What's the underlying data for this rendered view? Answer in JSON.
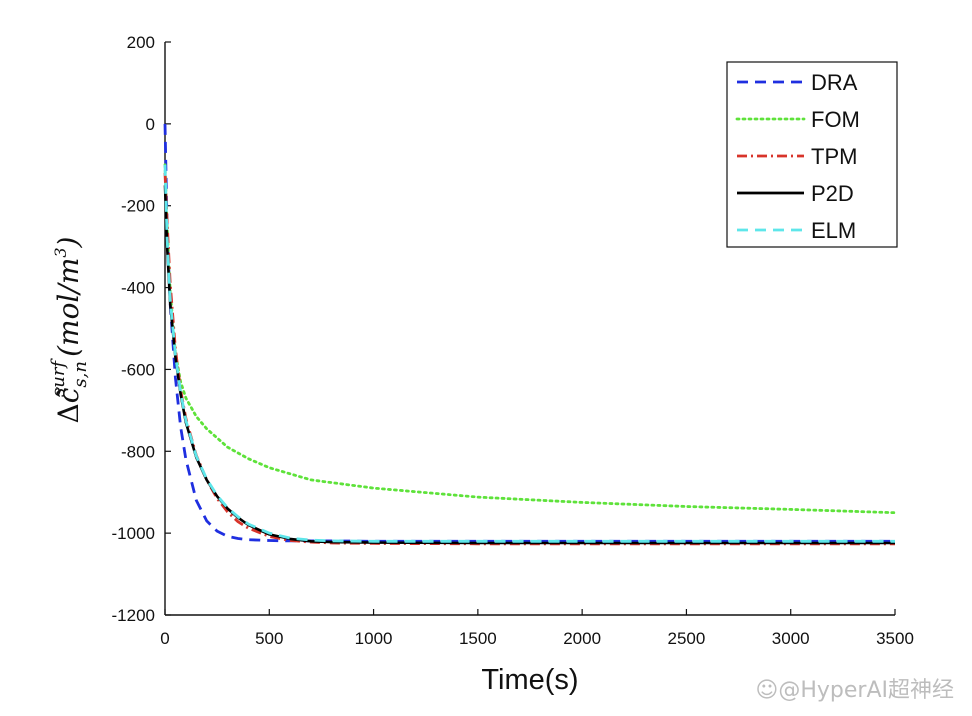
{
  "chart_data": {
    "type": "line",
    "title": "",
    "xlabel": "Time(s)",
    "ylabel": "Δc̃ s,n surf (mol/m³)",
    "xlim": [
      0,
      3500
    ],
    "ylim": [
      -1200,
      200
    ],
    "xticks": [
      0,
      500,
      1000,
      1500,
      2000,
      2500,
      3000,
      3500
    ],
    "yticks": [
      200,
      0,
      -200,
      -400,
      -600,
      -800,
      -1000,
      -1200
    ],
    "legend_position": "top-right",
    "series": [
      {
        "name": "DRA",
        "color": "#1f2fe0",
        "style": "dashed",
        "x": [
          0,
          10,
          25,
          50,
          75,
          100,
          150,
          200,
          250,
          300,
          350,
          400,
          500,
          600,
          800,
          1000,
          1500,
          2000,
          2500,
          3000,
          3500
        ],
        "y": [
          0,
          -250,
          -440,
          -620,
          -740,
          -820,
          -920,
          -970,
          -995,
          -1008,
          -1013,
          -1016,
          -1018,
          -1019,
          -1019,
          -1020,
          -1020,
          -1020,
          -1020,
          -1020,
          -1020
        ]
      },
      {
        "name": "FOM",
        "color": "#5ee23a",
        "style": "dotted",
        "x": [
          0,
          10,
          25,
          50,
          75,
          100,
          150,
          200,
          300,
          400,
          500,
          700,
          1000,
          1500,
          2000,
          2500,
          3000,
          3500
        ],
        "y": [
          -100,
          -250,
          -410,
          -560,
          -630,
          -670,
          -715,
          -745,
          -790,
          -818,
          -840,
          -870,
          -890,
          -912,
          -925,
          -935,
          -942,
          -950
        ]
      },
      {
        "name": "TPM",
        "color": "#d8342a",
        "style": "dash-dot",
        "x": [
          0,
          10,
          25,
          50,
          75,
          100,
          150,
          200,
          250,
          300,
          350,
          400,
          500,
          600,
          700,
          800,
          1000,
          1500,
          2000,
          2500,
          3000,
          3500
        ],
        "y": [
          -120,
          -240,
          -390,
          -550,
          -650,
          -720,
          -810,
          -870,
          -915,
          -948,
          -972,
          -988,
          -1008,
          -1018,
          -1022,
          -1024,
          -1025,
          -1026,
          -1026,
          -1026,
          -1026,
          -1026
        ]
      },
      {
        "name": "P2D",
        "color": "#000000",
        "style": "solid",
        "x": [
          0,
          10,
          25,
          50,
          75,
          100,
          150,
          200,
          250,
          300,
          350,
          400,
          500,
          600,
          700,
          800,
          1000,
          1500,
          2000,
          2500,
          3000,
          3500
        ],
        "y": [
          -150,
          -300,
          -440,
          -570,
          -660,
          -730,
          -815,
          -870,
          -910,
          -940,
          -962,
          -980,
          -1003,
          -1014,
          -1020,
          -1022,
          -1023,
          -1024,
          -1024,
          -1024,
          -1024,
          -1024
        ]
      },
      {
        "name": "ELM",
        "color": "#5ee6ea",
        "style": "dashed",
        "x": [
          0,
          10,
          25,
          50,
          75,
          100,
          150,
          200,
          250,
          300,
          350,
          400,
          500,
          600,
          700,
          800,
          1000,
          1500,
          2000,
          2500,
          3000,
          3500
        ],
        "y": [
          -100,
          -280,
          -430,
          -565,
          -655,
          -725,
          -812,
          -868,
          -908,
          -938,
          -960,
          -978,
          -1000,
          -1012,
          -1017,
          -1019,
          -1020,
          -1020,
          -1020,
          -1020,
          -1020,
          -1020
        ]
      }
    ]
  },
  "axis_labels": {
    "y_delta": "Δ",
    "y_c": "c̃",
    "y_sup": "surf",
    "y_sub": "s,n",
    "y_units": "(mol/m",
    "y_units_exp": "3",
    "y_units_close": ")"
  },
  "watermark": "☺@HyperAI超神经"
}
